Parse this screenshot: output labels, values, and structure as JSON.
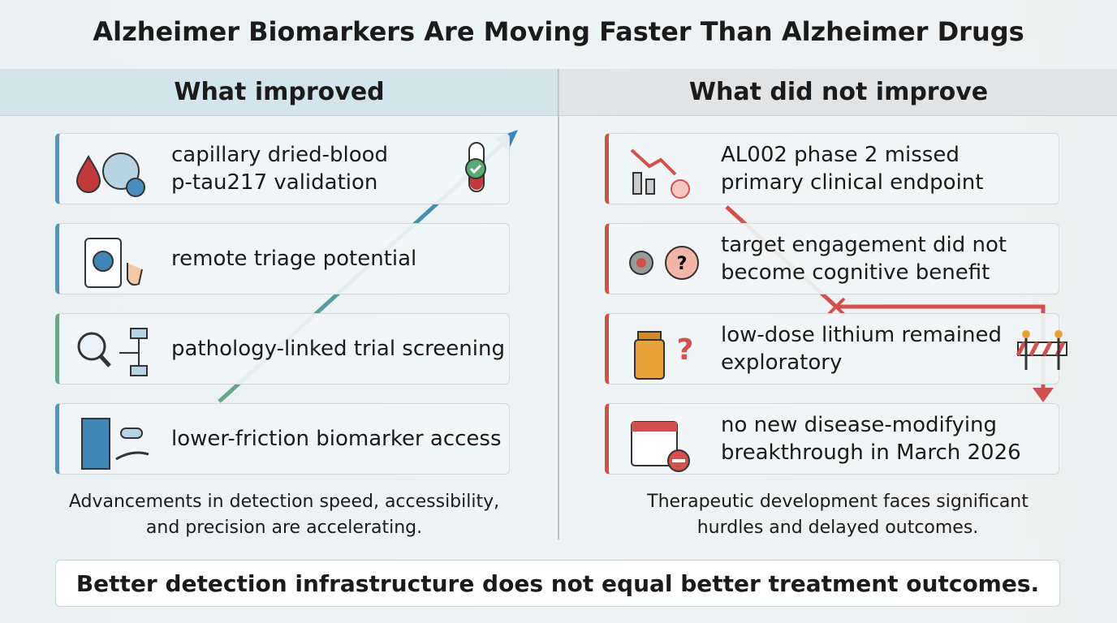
{
  "title": "Alzheimer Biomarkers Are Moving Faster Than Alzheimer Drugs",
  "left": {
    "heading": "What improved",
    "items": [
      [
        "capillary dried-blood",
        "p-tau217 validation"
      ],
      [
        "remote triage potential"
      ],
      [
        "pathology-linked trial screening"
      ],
      [
        "lower-friction biomarker access"
      ]
    ],
    "caption": [
      "Advancements in detection speed, accessibility,",
      "and precision are accelerating."
    ]
  },
  "right": {
    "heading": "What did not improve",
    "items": [
      [
        "AL002 phase 2 missed",
        "primary clinical endpoint"
      ],
      [
        "target engagement did not",
        "become cognitive benefit"
      ],
      [
        "low-dose lithium remained",
        "exploratory"
      ],
      [
        "no new disease-modifying",
        "breakthrough in March 2026"
      ]
    ],
    "caption": [
      "Therapeutic development faces significant",
      "hurdles and delayed outcomes."
    ]
  },
  "conclusion": "Better detection infrastructure does not equal better treatment outcomes."
}
